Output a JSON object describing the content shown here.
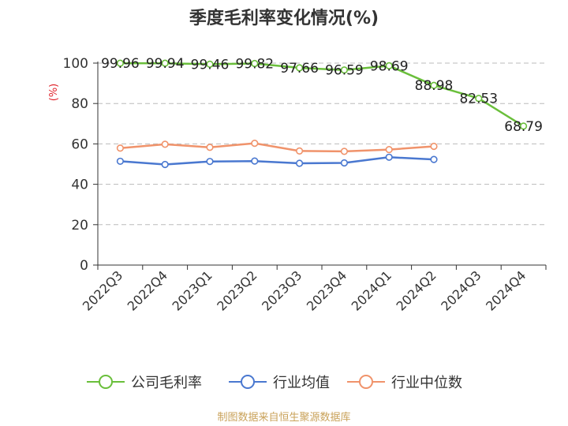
{
  "chart_data": {
    "type": "line",
    "title": "季度毛利率变化情况(%)",
    "ylabel": "(%)",
    "ylim": [
      0,
      100
    ],
    "yticks": [
      0,
      20,
      40,
      60,
      80,
      100
    ],
    "grid": true,
    "legend_position": "bottom",
    "categories": [
      "2022Q3",
      "2022Q4",
      "2023Q1",
      "2023Q2",
      "2023Q3",
      "2023Q4",
      "2024Q1",
      "2024Q2",
      "2024Q3",
      "2024Q4"
    ],
    "series": [
      {
        "name": "公司毛利率",
        "color": "#6abf3b",
        "values": [
          99.96,
          99.94,
          99.46,
          99.82,
          97.66,
          96.59,
          98.69,
          88.98,
          82.53,
          68.79
        ],
        "labels": [
          "99.96",
          "99.94",
          "99.46",
          "99.82",
          "97.66",
          "96.59",
          "98.69",
          "88.98",
          "82.53",
          "68.79"
        ]
      },
      {
        "name": "行业均值",
        "color": "#4a78d0",
        "values": [
          51.4,
          49.8,
          51.3,
          51.5,
          50.4,
          50.6,
          53.4,
          52.3,
          null,
          null
        ]
      },
      {
        "name": "行业中位数",
        "color": "#f0936b",
        "values": [
          57.9,
          59.8,
          58.3,
          60.3,
          56.5,
          56.3,
          57.2,
          58.8,
          null,
          null
        ]
      }
    ],
    "source": "制图数据来自恒生聚源数据库"
  }
}
